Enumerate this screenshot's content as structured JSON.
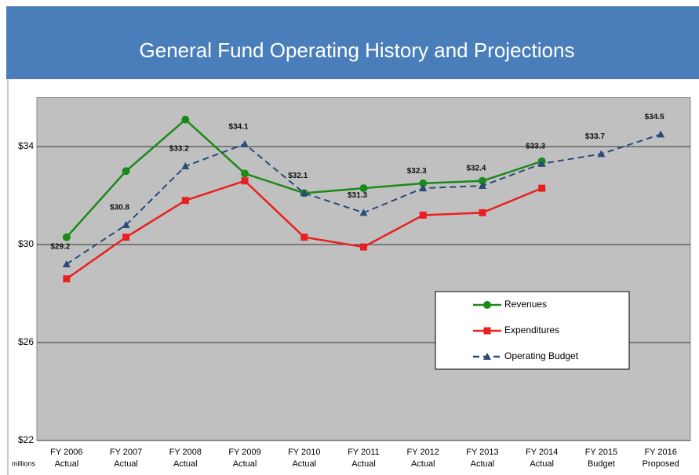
{
  "chart_data": {
    "type": "line",
    "title": "General Fund Operating History and Projections",
    "y_unit_label": "millions",
    "categories": [
      "FY 2006",
      "FY 2007",
      "FY 2008",
      "FY 2009",
      "FY 2010",
      "FY 2011",
      "FY 2012",
      "FY 2013",
      "FY 2014",
      "FY 2015",
      "FY 2016"
    ],
    "category_notes": [
      "Actual",
      "Actual",
      "Actual",
      "Actual",
      "Actual",
      "Actual",
      "Actual",
      "Actual",
      "Actual",
      "Budget",
      "Proposed"
    ],
    "ylim": [
      22,
      36
    ],
    "yticks": [
      {
        "value": 22,
        "label": "$22"
      },
      {
        "value": 26,
        "label": "$26"
      },
      {
        "value": 30,
        "label": "$30"
      },
      {
        "value": 34,
        "label": "$34"
      }
    ],
    "grid": true,
    "legend": "lower right",
    "series": [
      {
        "name": "Revenues",
        "color": "#1a8a1a",
        "marker": "circle",
        "dashed": false,
        "values": [
          30.3,
          33.0,
          35.1,
          32.9,
          32.1,
          32.3,
          32.5,
          32.6,
          33.4,
          null,
          null
        ]
      },
      {
        "name": "Expenditures",
        "color": "#e82020",
        "marker": "square",
        "dashed": false,
        "values": [
          28.6,
          30.3,
          31.8,
          32.6,
          30.3,
          29.9,
          31.2,
          31.3,
          32.3,
          null,
          null
        ]
      },
      {
        "name": "Operating Budget",
        "color": "#2b4a7a",
        "marker": "triangle",
        "dashed": true,
        "values": [
          29.2,
          30.8,
          33.2,
          34.1,
          32.1,
          31.3,
          32.3,
          32.4,
          33.3,
          33.7,
          34.5
        ],
        "value_labels": [
          "$29.2",
          "$30.8",
          "$33.2",
          "$34.1",
          "$32.1",
          "$31.3",
          "$32.3",
          "$32.4",
          "$33.3",
          "$33.7",
          "$34.5"
        ]
      }
    ]
  }
}
